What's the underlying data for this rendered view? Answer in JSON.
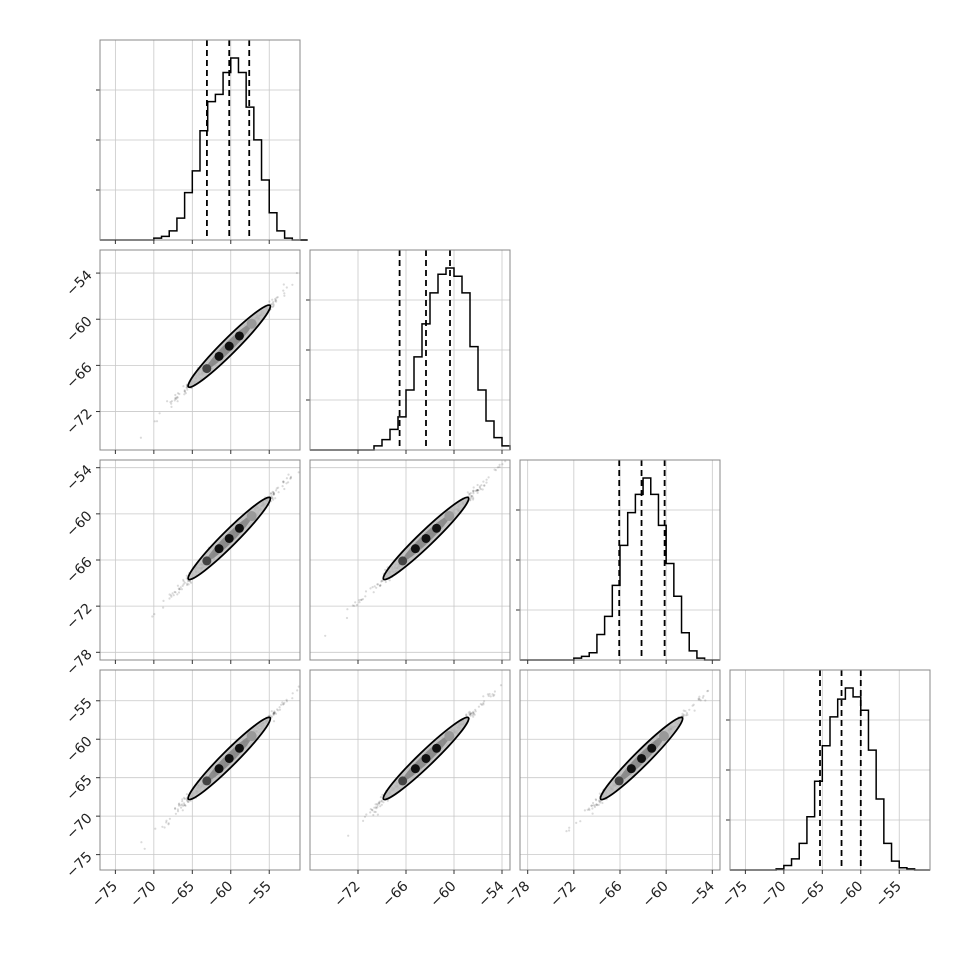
{
  "chart_data": {
    "type": "corner",
    "grid": true,
    "dimensions": 4,
    "histograms": [
      {
        "bins": [
          -75,
          -74,
          -73,
          -72,
          -71,
          -70,
          -69,
          -68,
          -67,
          -66,
          -65,
          -64,
          -63,
          -62,
          -61,
          -60,
          -59,
          -58,
          -57,
          -56,
          -55,
          -54,
          -53,
          -52,
          -51,
          -50
        ],
        "counts": [
          0,
          0,
          0,
          0,
          0,
          0.01,
          0.02,
          0.05,
          0.12,
          0.26,
          0.38,
          0.6,
          0.76,
          0.8,
          0.92,
          1.0,
          0.92,
          0.73,
          0.55,
          0.33,
          0.15,
          0.05,
          0.01,
          0,
          0
        ],
        "quantiles": [
          -63.1,
          -60.2,
          -57.6
        ],
        "xlim": [
          -77,
          -51
        ]
      },
      {
        "bins": [
          -78,
          -77,
          -76,
          -75,
          -74,
          -73,
          -72,
          -71,
          -70,
          -69,
          -68,
          -67,
          -66,
          -65,
          -64,
          -63,
          -62,
          -61,
          -60,
          -59,
          -58,
          -57,
          -56,
          -55,
          -54,
          -53
        ],
        "counts": [
          0,
          0,
          0,
          0,
          0,
          0,
          0,
          0,
          0.02,
          0.05,
          0.1,
          0.16,
          0.29,
          0.45,
          0.61,
          0.76,
          0.85,
          0.88,
          0.84,
          0.76,
          0.5,
          0.29,
          0.14,
          0.06,
          0.02,
          0
        ],
        "quantiles": [
          -66.8,
          -63.5,
          -60.5
        ],
        "xlim": [
          -78,
          -53
        ]
      },
      {
        "bins": [
          -78,
          -77,
          -76,
          -75,
          -74,
          -73,
          -72,
          -71,
          -70,
          -69,
          -68,
          -67,
          -66,
          -65,
          -64,
          -63,
          -62,
          -61,
          -60,
          -59,
          -58,
          -57,
          -56,
          -55,
          -54
        ],
        "counts": [
          0,
          0,
          0,
          0,
          0,
          0,
          0.01,
          0.02,
          0.04,
          0.14,
          0.24,
          0.41,
          0.63,
          0.81,
          0.91,
          1.0,
          0.91,
          0.74,
          0.53,
          0.35,
          0.15,
          0.05,
          0.01,
          0
        ],
        "quantiles": [
          -66.1,
          -63.2,
          -60.2
        ],
        "xlim": [
          -79,
          -53
        ]
      },
      {
        "bins": [
          -77,
          -76,
          -75,
          -74,
          -73,
          -72,
          -71,
          -70,
          -69,
          -68,
          -67,
          -66,
          -65,
          -64,
          -63,
          -62,
          -61,
          -60,
          -59,
          -58,
          -57,
          -56,
          -55,
          -54,
          -53,
          -52
        ],
        "counts": [
          0,
          0,
          0,
          0,
          0,
          0,
          0.005,
          0.02,
          0.05,
          0.12,
          0.24,
          0.4,
          0.56,
          0.69,
          0.77,
          0.82,
          0.78,
          0.72,
          0.54,
          0.32,
          0.12,
          0.04,
          0.01,
          0.005,
          0
        ],
        "quantiles": [
          -65.3,
          -62.5,
          -60.0
        ],
        "xlim": [
          -77,
          -51
        ]
      }
    ],
    "scatter_panels": [
      {
        "row": 1,
        "col": 0
      },
      {
        "row": 2,
        "col": 0
      },
      {
        "row": 2,
        "col": 1
      },
      {
        "row": 3,
        "col": 0
      },
      {
        "row": 3,
        "col": 1
      },
      {
        "row": 3,
        "col": 2
      }
    ],
    "y_axes": [
      {
        "row": 1,
        "ylim": [
          -77,
          -51
        ],
        "ticks": [
          "−54",
          "−60",
          "−66",
          "−72"
        ],
        "tick_values": [
          -54,
          -60,
          -66,
          -72
        ]
      },
      {
        "row": 2,
        "ylim": [
          -79,
          -53
        ],
        "ticks": [
          "−54",
          "−60",
          "−66",
          "−72",
          "−78"
        ],
        "tick_values": [
          -54,
          -60,
          -66,
          -72,
          -78
        ]
      },
      {
        "row": 3,
        "ylim": [
          -77,
          -51
        ],
        "ticks": [
          "−55",
          "−60",
          "−65",
          "−70",
          "−75"
        ],
        "tick_values": [
          -55,
          -60,
          -65,
          -70,
          -75
        ]
      }
    ],
    "x_axes": [
      {
        "col": 0,
        "xlim": [
          -77,
          -51
        ],
        "ticks": [
          "−75",
          "−70",
          "−65",
          "−60",
          "−55"
        ],
        "tick_values": [
          -75,
          -70,
          -65,
          -60,
          -55
        ]
      },
      {
        "col": 1,
        "xlim": [
          -78,
          -53
        ],
        "ticks": [
          "−72",
          "−66",
          "−60",
          "−54"
        ],
        "tick_values": [
          -72,
          -66,
          -60,
          -54
        ]
      },
      {
        "col": 2,
        "xlim": [
          -79,
          -53
        ],
        "ticks": [
          "−78",
          "−72",
          "−66",
          "−60",
          "−54"
        ],
        "tick_values": [
          -78,
          -72,
          -66,
          -60,
          -54
        ]
      },
      {
        "col": 3,
        "xlim": [
          -77,
          -51
        ],
        "ticks": [
          "−75",
          "−70",
          "−65",
          "−60",
          "−55"
        ],
        "tick_values": [
          -75,
          -70,
          -65,
          -60,
          -55
        ]
      }
    ],
    "colors": {
      "line": "#000000",
      "frame": "#888888",
      "grid": "#c8c8c8",
      "points": "#333333",
      "contour_fill": "#bbbbbb"
    }
  }
}
